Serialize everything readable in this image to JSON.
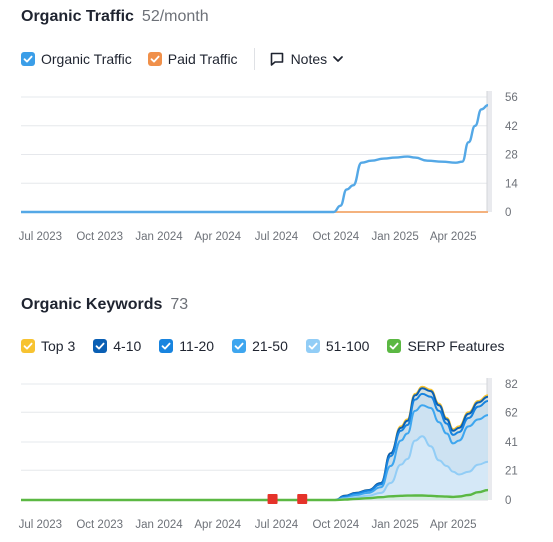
{
  "traffic": {
    "title": "Organic Traffic",
    "subtitle": "52/month",
    "legend": [
      {
        "label": "Organic Traffic",
        "color": "#3b9ee8",
        "checked": true,
        "icon": "check-icon"
      },
      {
        "label": "Paid Traffic",
        "color": "#f0904a",
        "checked": true,
        "icon": "check-icon"
      }
    ],
    "notes_label": "Notes",
    "notes_icon": "comment-icon",
    "notes_chevron": "chevron-down-icon"
  },
  "keywords": {
    "title": "Organic Keywords",
    "subtitle": "73",
    "legend": [
      {
        "label": "Top 3",
        "color": "#f7c331",
        "checked": true
      },
      {
        "label": "4-10",
        "color": "#0a5fb4",
        "checked": true
      },
      {
        "label": "11-20",
        "color": "#1884df",
        "checked": true
      },
      {
        "label": "21-50",
        "color": "#3ea6ef",
        "checked": true
      },
      {
        "label": "51-100",
        "color": "#92cdf6",
        "checked": true
      },
      {
        "label": "SERP Features",
        "color": "#5bb843",
        "checked": true
      }
    ]
  },
  "chart_data": [
    {
      "type": "line",
      "x_ticks": [
        "Jul 2023",
        "Oct 2023",
        "Jan 2024",
        "Apr 2024",
        "Jul 2024",
        "Oct 2024",
        "Jan 2025",
        "Apr 2025"
      ],
      "y_ticks": [
        0,
        14,
        28,
        42,
        56
      ],
      "ylim": [
        0,
        56
      ],
      "grid": true,
      "series": [
        {
          "name": "Organic Traffic",
          "color": "#54a8e6",
          "x": [
            "2023-06-01",
            "2023-09-01",
            "2024-01-01",
            "2024-05-01",
            "2024-08-01",
            "2024-09-28",
            "2024-10-08",
            "2024-10-18",
            "2024-10-28",
            "2024-11-10",
            "2024-11-25",
            "2024-12-15",
            "2025-01-01",
            "2025-01-20",
            "2025-02-01",
            "2025-02-20",
            "2025-03-15",
            "2025-04-05",
            "2025-04-15",
            "2025-04-25",
            "2025-05-05",
            "2025-05-15",
            "2025-05-25"
          ],
          "values": [
            0,
            0,
            0,
            0,
            0,
            0,
            3,
            11,
            13,
            24,
            25,
            26,
            26.5,
            27,
            26.5,
            25,
            24.5,
            24,
            24.5,
            34,
            42,
            50,
            52
          ]
        },
        {
          "name": "Paid Traffic",
          "color": "#f4b27e",
          "x": [
            "2024-09-30",
            "2025-05-25"
          ],
          "values": [
            0,
            0
          ]
        }
      ]
    },
    {
      "type": "area",
      "x_ticks": [
        "Jul 2023",
        "Oct 2023",
        "Jan 2024",
        "Apr 2024",
        "Jul 2024",
        "Oct 2024",
        "Jan 2025",
        "Apr 2025"
      ],
      "y_ticks": [
        0,
        21,
        41,
        62,
        82
      ],
      "ylim": [
        0,
        82
      ],
      "grid": true,
      "annotations": [
        {
          "x": "2024-06-25",
          "type": "flag",
          "color": "#e5332a"
        },
        {
          "x": "2024-08-10",
          "type": "flag",
          "color": "#e5332a"
        }
      ],
      "x": [
        "2023-06-01",
        "2024-08-01",
        "2024-09-30",
        "2024-10-15",
        "2024-11-01",
        "2024-11-20",
        "2024-12-10",
        "2024-12-25",
        "2025-01-10",
        "2025-01-20",
        "2025-02-01",
        "2025-02-12",
        "2025-02-25",
        "2025-03-10",
        "2025-03-22",
        "2025-04-01",
        "2025-04-10",
        "2025-04-25",
        "2025-05-10",
        "2025-05-25"
      ],
      "series": [
        {
          "name": "Top 3",
          "color": "#f7c331",
          "values": [
            0,
            0,
            0,
            3,
            5,
            7,
            12,
            33,
            52,
            57,
            75,
            80,
            78,
            68,
            58,
            50,
            52,
            62,
            70,
            74
          ]
        },
        {
          "name": "4-10",
          "color": "#0a5fb4",
          "values": [
            0,
            0,
            0,
            3,
            5,
            7,
            12,
            33,
            51,
            56,
            74,
            79,
            77,
            67,
            57,
            49,
            51,
            61,
            69,
            73
          ]
        },
        {
          "name": "11-20",
          "color": "#1884df",
          "values": [
            0,
            0,
            0,
            2.5,
            4.5,
            6.5,
            11,
            31,
            49,
            53,
            71,
            75,
            73,
            63,
            54,
            46,
            48,
            58,
            66,
            70
          ]
        },
        {
          "name": "21-50",
          "color": "#3ea6ef",
          "values": [
            0,
            0,
            0,
            1.5,
            3.5,
            5,
            9,
            24,
            42,
            47,
            63,
            67,
            65,
            55,
            47,
            40,
            42,
            52,
            57,
            60
          ]
        },
        {
          "name": "51-100",
          "color": "#92cdf6",
          "values": [
            0,
            0,
            0,
            1,
            2,
            3,
            5,
            12,
            25,
            29,
            42,
            45,
            38,
            28,
            24,
            20,
            18,
            20,
            25,
            27
          ]
        },
        {
          "name": "SERP Features",
          "color": "#5bb843",
          "values": [
            0,
            0,
            0,
            0.3,
            0.8,
            1.3,
            2,
            2.6,
            3,
            3.1,
            3.2,
            3.2,
            3,
            2.6,
            2.4,
            2.2,
            2.5,
            3.5,
            5.5,
            7
          ]
        }
      ]
    }
  ]
}
